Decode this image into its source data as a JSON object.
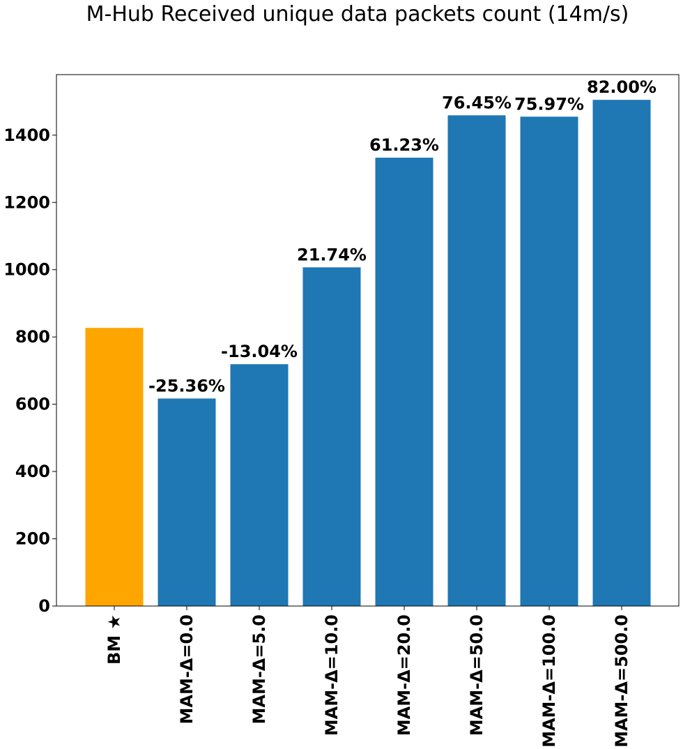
{
  "chart_data": {
    "type": "bar",
    "title": "M-Hub Received unique data packets count (14m/s)",
    "xlabel": "",
    "ylabel": "",
    "categories": [
      "BM ★",
      "MAM-Δ=0.0",
      "MAM-Δ=5.0",
      "MAM-Δ=10.0",
      "MAM-Δ=20.0",
      "MAM-Δ=50.0",
      "MAM-Δ=100.0",
      "MAM-Δ=500.0"
    ],
    "values": [
      827,
      617,
      719,
      1007,
      1333,
      1459,
      1455,
      1505
    ],
    "bar_labels": [
      "",
      "-25.36%",
      "-13.04%",
      "21.74%",
      "61.23%",
      "76.45%",
      "75.97%",
      "82.00%"
    ],
    "bar_colors": [
      "#FFA500",
      "#1F77B4",
      "#1F77B4",
      "#1F77B4",
      "#1F77B4",
      "#1F77B4",
      "#1F77B4",
      "#1F77B4"
    ],
    "ylim": [
      0,
      1580
    ],
    "yticks": [
      0,
      200,
      400,
      600,
      800,
      1000,
      1200,
      1400
    ],
    "grid": false,
    "legend": "none"
  }
}
